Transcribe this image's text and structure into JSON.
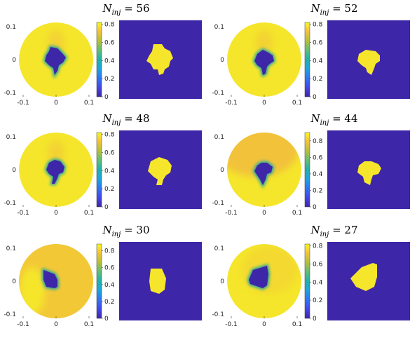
{
  "chart_data": [
    {
      "type": "heatmap",
      "title": "N_inj = 56",
      "title_main": "N",
      "title_sub": "inj",
      "title_rest": " = 56",
      "x_ticks": [
        "-0.1",
        "0",
        "0.1"
      ],
      "y_ticks": [
        "0.1",
        "0",
        "-0.1"
      ],
      "colorbar_ticks": [
        "0.8",
        "0.6",
        "0.4",
        "0.2",
        "0"
      ],
      "colorbar_range": [
        0,
        0.82
      ],
      "background_value": 0.8,
      "inclusion_value": 0.0
    },
    {
      "type": "heatmap",
      "title": "N_inj = 52",
      "title_main": "N",
      "title_sub": "inj",
      "title_rest": " = 52",
      "x_ticks": [
        "-0.1",
        "0",
        "0.1"
      ],
      "y_ticks": [
        "0.1",
        "0",
        "-0.1"
      ],
      "colorbar_ticks": [
        "0.8",
        "0.6",
        "0.4",
        "0.2",
        "0"
      ],
      "colorbar_range": [
        0,
        0.82
      ],
      "background_value": 0.8,
      "inclusion_value": 0.0
    },
    {
      "type": "heatmap",
      "title": "N_inj = 48",
      "title_main": "N",
      "title_sub": "inj",
      "title_rest": " = 48",
      "x_ticks": [
        "-0.1",
        "0",
        "0.1"
      ],
      "y_ticks": [
        "0.1",
        "0",
        "-0.1"
      ],
      "colorbar_ticks": [
        "0.8",
        "0.6",
        "0.4",
        "0.2",
        "0"
      ],
      "colorbar_range": [
        0,
        0.82
      ],
      "background_value": 0.8,
      "inclusion_value": 0.0
    },
    {
      "type": "heatmap",
      "title": "N_inj = 44",
      "title_main": "N",
      "title_sub": "inj",
      "title_rest": " = 44",
      "x_ticks": [
        "-0.1",
        "0",
        "0.1"
      ],
      "y_ticks": [
        "0.1",
        "0",
        "-0.1"
      ],
      "colorbar_ticks": [
        "0.8",
        "0.6",
        "0.4",
        "0.2",
        "0"
      ],
      "colorbar_range": [
        0,
        0.9
      ],
      "background_value": 0.8,
      "inclusion_value": 0.0
    },
    {
      "type": "heatmap",
      "title": "N_inj = 30",
      "title_main": "N",
      "title_sub": "inj",
      "title_rest": " = 30",
      "x_ticks": [
        "-0.1",
        "0",
        "0.1"
      ],
      "y_ticks": [
        "0.1",
        "0",
        "-0.1"
      ],
      "colorbar_ticks": [
        "0.8",
        "0.6",
        "0.4",
        "0.2",
        "0"
      ],
      "colorbar_range": [
        0,
        0.88
      ],
      "background_value": 0.78,
      "inclusion_value": 0.0
    },
    {
      "type": "heatmap",
      "title": "N_inj = 27",
      "title_main": "N",
      "title_sub": "inj",
      "title_rest": " = 27",
      "x_ticks": [
        "-0.1",
        "0",
        "0.1"
      ],
      "y_ticks": [
        "0.1",
        "0",
        "-0.1"
      ],
      "colorbar_ticks": [
        "0.8",
        "0.6",
        "0.4",
        "0.2",
        "0"
      ],
      "colorbar_range": [
        0,
        0.82
      ],
      "background_value": 0.8,
      "inclusion_value": 0.0
    }
  ],
  "colors": {
    "high": "#f5e62b",
    "orange": "#f2c23a",
    "teal": "#22a5a0",
    "low": "#3e26a8",
    "axis": "#222222"
  }
}
